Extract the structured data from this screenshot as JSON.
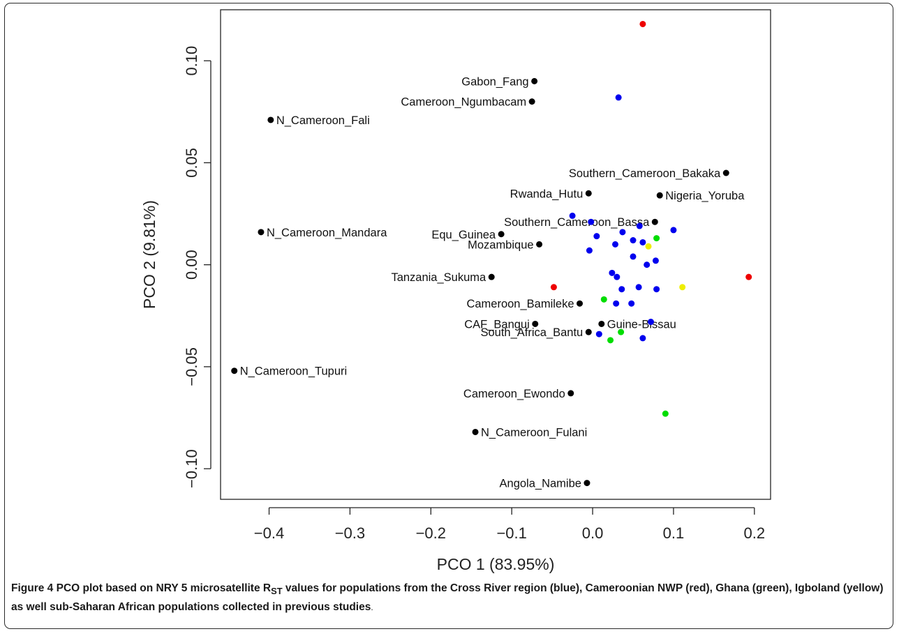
{
  "chart_data": {
    "type": "scatter",
    "xlabel": "PCO 1 (83.95%)",
    "ylabel": "PCO 2 (9.81%)",
    "xlim": [
      -0.46,
      0.22
    ],
    "ylim": [
      -0.115,
      0.125
    ],
    "xticks": [
      "-0.4",
      "-0.3",
      "-0.2",
      "-0.1",
      "0.0",
      "0.1",
      "0.2"
    ],
    "yticks": [
      "-0.10",
      "-0.05",
      "0.00",
      "0.05",
      "0.10"
    ],
    "grid": false,
    "legend": "none",
    "groups": {
      "previous": {
        "color": "#000000"
      },
      "cross_river": {
        "color": "#0000ee"
      },
      "cameroon_nwp": {
        "color": "#ee0000"
      },
      "ghana": {
        "color": "#00dd00"
      },
      "igboland": {
        "color": "#eeee00"
      }
    },
    "labeled_points": [
      {
        "label": "Gabon_Fang",
        "x": -0.072,
        "y": 0.09,
        "label_side": "left"
      },
      {
        "label": "Cameroon_Ngumbacam",
        "x": -0.075,
        "y": 0.08,
        "label_side": "left"
      },
      {
        "label": "N_Cameroon_Fali",
        "x": -0.398,
        "y": 0.071,
        "label_side": "right"
      },
      {
        "label": "Southern_Cameroon_Bakaka",
        "x": 0.165,
        "y": 0.045,
        "label_side": "left"
      },
      {
        "label": "Rwanda_Hutu",
        "x": -0.005,
        "y": 0.035,
        "label_side": "left"
      },
      {
        "label": "Nigeria_Yoruba",
        "x": 0.083,
        "y": 0.034,
        "label_side": "right"
      },
      {
        "label": "Southern_Cameroon_Bassa",
        "x": 0.077,
        "y": 0.021,
        "label_side": "left"
      },
      {
        "label": "N_Cameroon_Mandara",
        "x": -0.41,
        "y": 0.016,
        "label_side": "right"
      },
      {
        "label": "Equ_Guinea",
        "x": -0.113,
        "y": 0.015,
        "label_side": "left"
      },
      {
        "label": "Mozambique",
        "x": -0.066,
        "y": 0.01,
        "label_side": "left"
      },
      {
        "label": "Tanzania_Sukuma",
        "x": -0.125,
        "y": -0.006,
        "label_side": "left"
      },
      {
        "label": "Cameroon_Bamileke",
        "x": -0.016,
        "y": -0.019,
        "label_side": "left"
      },
      {
        "label": "CAF_Bangui",
        "x": -0.071,
        "y": -0.029,
        "label_side": "left"
      },
      {
        "label": "Guine-Bissau",
        "x": 0.011,
        "y": -0.029,
        "label_side": "right"
      },
      {
        "label": "South_Africa_Bantu",
        "x": -0.005,
        "y": -0.033,
        "label_side": "left"
      },
      {
        "label": "N_Cameroon_Tupuri",
        "x": -0.443,
        "y": -0.052,
        "label_side": "right"
      },
      {
        "label": "Cameroon_Ewondo",
        "x": -0.027,
        "y": -0.063,
        "label_side": "left"
      },
      {
        "label": "N_Cameroon_Fulani",
        "x": -0.145,
        "y": -0.082,
        "label_side": "right"
      },
      {
        "label": "Angola_Namibe",
        "x": -0.007,
        "y": -0.107,
        "label_side": "left"
      }
    ],
    "series": [
      {
        "group": "cross_river",
        "points": [
          [
            0.032,
            0.082
          ],
          [
            -0.025,
            0.024
          ],
          [
            -0.002,
            0.021
          ],
          [
            0.058,
            0.019
          ],
          [
            0.1,
            0.017
          ],
          [
            0.037,
            0.016
          ],
          [
            0.005,
            0.014
          ],
          [
            0.05,
            0.012
          ],
          [
            0.028,
            0.01
          ],
          [
            0.062,
            0.011
          ],
          [
            -0.004,
            0.007
          ],
          [
            0.05,
            0.004
          ],
          [
            0.078,
            0.002
          ],
          [
            0.067,
            0.0
          ],
          [
            0.024,
            -0.004
          ],
          [
            0.03,
            -0.006
          ],
          [
            0.036,
            -0.012
          ],
          [
            0.057,
            -0.011
          ],
          [
            0.079,
            -0.012
          ],
          [
            0.029,
            -0.019
          ],
          [
            0.048,
            -0.019
          ],
          [
            0.072,
            -0.028
          ],
          [
            0.008,
            -0.034
          ],
          [
            0.062,
            -0.036
          ]
        ]
      },
      {
        "group": "cameroon_nwp",
        "points": [
          [
            0.062,
            0.118
          ],
          [
            -0.048,
            -0.011
          ],
          [
            0.193,
            -0.006
          ]
        ]
      },
      {
        "group": "ghana",
        "points": [
          [
            0.079,
            0.013
          ],
          [
            0.014,
            -0.017
          ],
          [
            0.035,
            -0.033
          ],
          [
            0.022,
            -0.037
          ],
          [
            0.09,
            -0.073
          ]
        ]
      },
      {
        "group": "igboland",
        "points": [
          [
            0.069,
            0.009
          ],
          [
            0.111,
            -0.011
          ]
        ]
      }
    ]
  },
  "caption": {
    "figure_label": "Figure 4",
    "text_part1": " PCO plot based on NRY 5 microsatellite R",
    "subscript": "ST",
    "text_part2": " values for populations from the Cross River region (blue), Cameroonian NWP (red), Ghana (green), Igboland (yellow) as well sub-Saharan African populations collected in previous studies",
    "end": "."
  }
}
